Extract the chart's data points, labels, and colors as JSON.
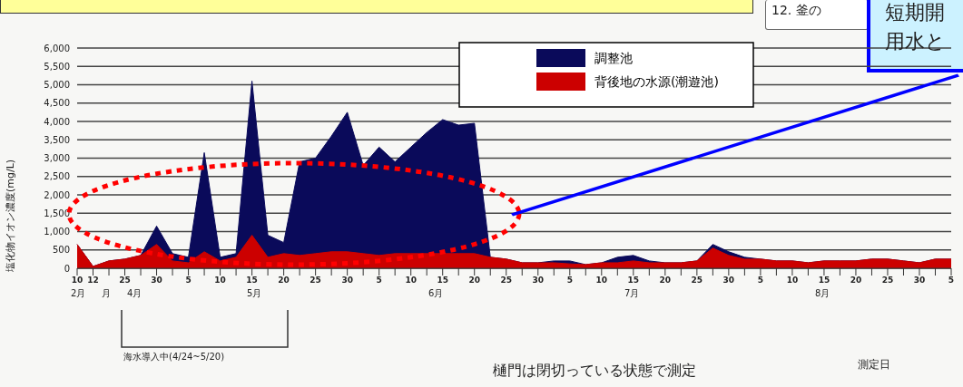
{
  "chart_data": {
    "type": "area",
    "ylabel": "塩化物イオン濃度(mg/L)",
    "categories": [
      "10",
      "12",
      null,
      "25",
      null,
      "30",
      null,
      "5",
      null,
      "10",
      null,
      "15",
      null,
      "20",
      null,
      "25",
      null,
      "30",
      null,
      "5",
      null,
      "10",
      null,
      "15",
      null,
      "20",
      null,
      "25",
      null,
      "30",
      null,
      "5",
      null,
      "10",
      null,
      "15",
      null,
      "20",
      null,
      "25",
      null,
      "30",
      null,
      "5",
      null,
      "10",
      null,
      "15",
      null,
      "20",
      null,
      "25",
      null,
      "30",
      null,
      "5"
    ],
    "series": [
      {
        "name": "調整池",
        "color": "#0a0a5a",
        "values": [
          650,
          50,
          200,
          250,
          350,
          1150,
          400,
          300,
          3150,
          300,
          400,
          5100,
          900,
          700,
          2900,
          3000,
          3600,
          4250,
          2800,
          3300,
          2900,
          3300,
          3700,
          4050,
          3900,
          3950,
          300,
          250,
          150,
          150,
          200,
          200,
          100,
          150,
          300,
          350,
          200,
          150,
          150,
          200,
          650,
          450,
          300,
          250,
          200,
          200,
          150,
          200,
          200,
          200,
          250,
          250,
          200,
          150,
          250,
          250
        ]
      },
      {
        "name": "背後地の水源(潮遊池)",
        "color": "#cc0000",
        "values": [
          650,
          50,
          200,
          250,
          350,
          650,
          200,
          150,
          450,
          200,
          300,
          900,
          300,
          400,
          350,
          400,
          450,
          450,
          400,
          350,
          400,
          400,
          400,
          400,
          400,
          400,
          300,
          250,
          150,
          150,
          150,
          120,
          100,
          150,
          150,
          200,
          150,
          150,
          150,
          200,
          550,
          350,
          250,
          250,
          200,
          200,
          150,
          200,
          200,
          200,
          250,
          250,
          200,
          150,
          250,
          250
        ]
      }
    ],
    "ylim": [
      0,
      6000
    ],
    "yticks": [
      0,
      500,
      {
        "value": 1000,
        "label": "1,000"
      },
      {
        "value": 1500,
        "label": "1,500"
      },
      {
        "value": 2000,
        "label": "2,000"
      },
      {
        "value": 2500,
        "label": "2,500"
      },
      {
        "value": 3000,
        "label": "3,000"
      },
      {
        "value": 3500,
        "label": "3,500"
      },
      {
        "value": 4000,
        "label": "4,000"
      },
      {
        "value": 4500,
        "label": "4,500"
      },
      {
        "value": 5000,
        "label": "5,000"
      },
      {
        "value": 5500,
        "label": "5,500"
      },
      {
        "value": 6000,
        "label": "6,000"
      }
    ],
    "grid": "y",
    "legend": "top",
    "annotations": [
      "2月",
      "月",
      "4月",
      "5月",
      "6月",
      "7月",
      "8月",
      "海水導入中(4/24~5/20)",
      "樋門は閉切っている状態で測定",
      "12. 釜の",
      "短期開",
      "用水と",
      "測定日"
    ]
  }
}
